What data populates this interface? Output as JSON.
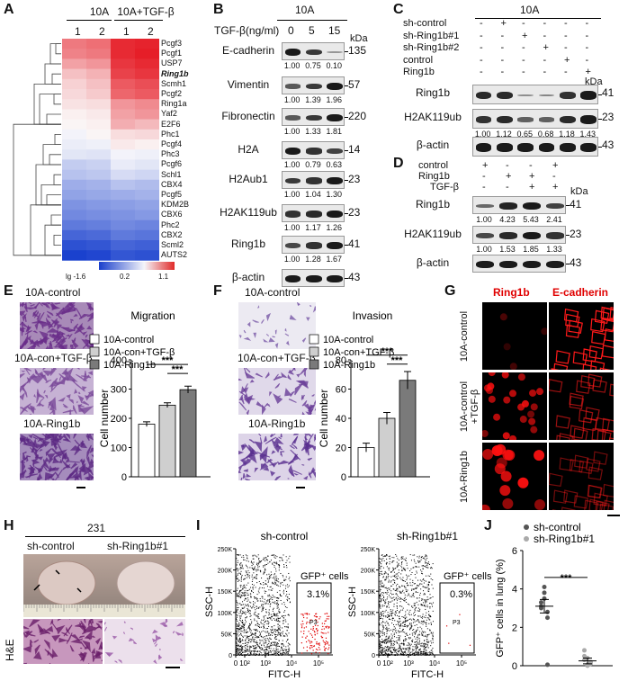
{
  "panel_labels": {
    "A": "A",
    "B": "B",
    "C": "C",
    "D": "D",
    "E": "E",
    "F": "F",
    "G": "G",
    "H": "H",
    "I": "I",
    "J": "J"
  },
  "panelA": {
    "group1": "10A",
    "group2": "10A+TGF-β",
    "col_labels": [
      "1",
      "2",
      "1",
      "2"
    ],
    "genes": [
      "Pcgf3",
      "Pcgf1",
      "USP7",
      "Ring1b",
      "Scmh1",
      "Pcgf2",
      "Ring1a",
      "Yaf2",
      "E2F6",
      "Phc1",
      "Pcgf4",
      "Phc3",
      "Pcgf6",
      "Schl1",
      "CBX4",
      "Pcgf5",
      "KDM2B",
      "CBX6",
      "Phc2",
      "CBX2",
      "Scml2",
      "AUTS2"
    ],
    "heat": [
      [
        0.72,
        0.76,
        1.05,
        1.08
      ],
      [
        0.68,
        0.72,
        1.05,
        1.1
      ],
      [
        0.55,
        0.6,
        1.0,
        1.05
      ],
      [
        0.42,
        0.48,
        0.95,
        1.0
      ],
      [
        0.35,
        0.42,
        0.85,
        0.9
      ],
      [
        0.32,
        0.38,
        0.8,
        0.85
      ],
      [
        0.28,
        0.3,
        0.6,
        0.65
      ],
      [
        0.22,
        0.25,
        0.55,
        0.6
      ],
      [
        0.2,
        0.22,
        0.5,
        0.45
      ],
      [
        0.18,
        0.2,
        0.3,
        0.32
      ],
      [
        0.12,
        0.15,
        0.25,
        0.22
      ],
      [
        0.05,
        0.02,
        0.18,
        0.15
      ],
      [
        -0.2,
        -0.15,
        0.1,
        0.05
      ],
      [
        -0.3,
        -0.25,
        -0.05,
        -0.1
      ],
      [
        -0.5,
        -0.45,
        -0.3,
        -0.35
      ],
      [
        -0.6,
        -0.55,
        -0.5,
        -0.45
      ],
      [
        -0.75,
        -0.7,
        -0.65,
        -0.6
      ],
      [
        -0.85,
        -0.8,
        -0.75,
        -0.7
      ],
      [
        -1.0,
        -0.95,
        -0.85,
        -0.9
      ],
      [
        -1.2,
        -1.15,
        -1.0,
        -1.05
      ],
      [
        -1.4,
        -1.35,
        -1.2,
        -1.25
      ],
      [
        -1.55,
        -1.5,
        -1.35,
        -1.4
      ]
    ],
    "scale_labels": [
      "lg -1.6",
      "0.2",
      "1.1"
    ]
  },
  "panelB": {
    "title": "10A",
    "treatment_label": "TGF-β(ng/ml)",
    "doses": [
      "0",
      "5",
      "15"
    ],
    "unit": "kDa",
    "rows": [
      {
        "name": "E-cadherin",
        "kda": "135",
        "quant": [
          "1.00",
          "0.75",
          "0.10"
        ],
        "int": [
          1,
          0.8,
          0.2
        ]
      },
      {
        "name": "Vimentin",
        "kda": "57",
        "quant": [
          "1.00",
          "1.39",
          "1.96"
        ],
        "int": [
          0.6,
          0.8,
          1
        ]
      },
      {
        "name": "Fibronectin",
        "kda": "220",
        "quant": [
          "1.00",
          "1.33",
          "1.81"
        ],
        "int": [
          0.6,
          0.8,
          1
        ]
      },
      {
        "name": "H2A",
        "kda": "14",
        "quant": [
          "1.00",
          "0.79",
          "0.63"
        ],
        "int": [
          1,
          0.85,
          0.75
        ]
      },
      {
        "name": "H2Aub1",
        "kda": "23",
        "quant": [
          "1.00",
          "1.04",
          "1.30"
        ],
        "int": [
          0.8,
          0.85,
          1
        ]
      },
      {
        "name": "H2AK119ub",
        "kda": "23",
        "quant": [
          "1.00",
          "1.17",
          "1.26"
        ],
        "int": [
          0.85,
          0.9,
          1
        ]
      },
      {
        "name": "Ring1b",
        "kda": "41",
        "quant": [
          "1.00",
          "1.28",
          "1.67"
        ],
        "int": [
          0.7,
          0.85,
          1
        ]
      },
      {
        "name": "β-actin",
        "kda": "43",
        "quant": [],
        "int": [
          1,
          1,
          1
        ]
      }
    ]
  },
  "panelC": {
    "title": "10A",
    "unit": "kDa",
    "conditions": [
      {
        "name": "sh-control",
        "signs": [
          "-",
          "+",
          "-",
          "-",
          "-",
          "-"
        ]
      },
      {
        "name": "sh-Ring1b#1",
        "signs": [
          "-",
          "-",
          "+",
          "-",
          "-",
          "-"
        ]
      },
      {
        "name": "sh-Ring1b#2",
        "signs": [
          "-",
          "-",
          "-",
          "+",
          "-",
          "-"
        ]
      },
      {
        "name": "control",
        "signs": [
          "-",
          "-",
          "-",
          "-",
          "+",
          "-"
        ]
      },
      {
        "name": "Ring1b",
        "signs": [
          "-",
          "-",
          "-",
          "-",
          "-",
          "+"
        ]
      }
    ],
    "rows": [
      {
        "name": "Ring1b",
        "kda": "41",
        "quant": [],
        "int": [
          0.9,
          0.9,
          0.25,
          0.3,
          0.85,
          1
        ]
      },
      {
        "name": "H2AK119ub",
        "kda": "23",
        "quant": [
          "1.00",
          "1.12",
          "0.65",
          "0.68",
          "1.18",
          "1.43"
        ],
        "int": [
          0.85,
          0.9,
          0.55,
          0.55,
          0.9,
          1
        ]
      },
      {
        "name": "β-actin",
        "kda": "43",
        "quant": [],
        "int": [
          1,
          1,
          1,
          1,
          1,
          1
        ]
      }
    ]
  },
  "panelD": {
    "unit": "kDa",
    "conditions": [
      {
        "name": "control",
        "signs": [
          "+",
          "-",
          "-",
          "+"
        ]
      },
      {
        "name": "Ring1b",
        "signs": [
          "-",
          "+",
          "+",
          "-"
        ]
      },
      {
        "name": "TGF-β",
        "signs": [
          "-",
          "-",
          "+",
          "+"
        ]
      }
    ],
    "rows": [
      {
        "name": "Ring1b",
        "kda": "41",
        "quant": [
          "1.00",
          "4.23",
          "5.43",
          "2.41"
        ],
        "int": [
          0.5,
          0.95,
          1,
          0.75
        ]
      },
      {
        "name": "H2AK119ub",
        "kda": "23",
        "quant": [
          "1.00",
          "1.53",
          "1.85",
          "1.33"
        ],
        "int": [
          0.7,
          0.9,
          1,
          0.85
        ]
      },
      {
        "name": "β-actin",
        "kda": "43",
        "quant": [],
        "int": [
          1,
          1,
          1,
          1
        ]
      }
    ]
  },
  "panelE": {
    "images": [
      "10A-control",
      "10A-con+TGF-β",
      "10A-Ring1b"
    ]
  },
  "panelF": {
    "images": [
      "10A-control",
      "10A-con+TGF-β",
      "10A-Ring1b"
    ]
  },
  "chart_data": [
    {
      "type": "bar",
      "title": "Migration",
      "categories": [
        "10A-control",
        "10A-con+TGF-β",
        "10A-Ring1b"
      ],
      "values": [
        180,
        245,
        298
      ],
      "errors": [
        8,
        8,
        12
      ],
      "ylabel": "Cell number",
      "ylim": [
        0,
        400
      ],
      "yticks": [
        "0",
        "100",
        "200",
        "300",
        "400"
      ],
      "colors": [
        "#ffffff",
        "#cfcfcf",
        "#7a7a7a"
      ],
      "significance": [
        "***",
        "***"
      ]
    },
    {
      "type": "bar",
      "title": "Invasion",
      "categories": [
        "10A-control",
        "10A-con+TGF-β",
        "10A-Ring1b"
      ],
      "values": [
        20,
        40,
        66
      ],
      "errors": [
        3,
        4,
        6
      ],
      "ylabel": "Cell number",
      "ylim": [
        0,
        80
      ],
      "yticks": [
        "0",
        "20",
        "40",
        "60",
        "80"
      ],
      "colors": [
        "#ffffff",
        "#cfcfcf",
        "#7a7a7a"
      ],
      "significance": [
        "***",
        "***"
      ]
    },
    {
      "type": "scatter",
      "ylabel": "GFP⁺ cells in lung (%)",
      "ylim": [
        0,
        6
      ],
      "yticks": [
        "0",
        "2",
        "4",
        "6"
      ],
      "significance": "***",
      "series": [
        {
          "name": "sh-control",
          "color": "#555555",
          "values": [
            3.1,
            3.5,
            2.8,
            3.3,
            4.1,
            2.5,
            3.0,
            3.8,
            0.05
          ],
          "mean": 3.1,
          "sem": 0.35
        },
        {
          "name": "sh-Ring1b#1",
          "color": "#aaaaaa",
          "values": [
            0.3,
            0.05,
            0.1,
            0.5,
            0.0,
            0.2,
            0.8,
            0.4
          ],
          "mean": 0.25,
          "sem": 0.15
        }
      ]
    }
  ],
  "panelG": {
    "col_labels": [
      "Ring1b",
      "E-cadherin"
    ],
    "row_labels": [
      "10A-control",
      "10A-control +TGF-β",
      "10A-Ring1b"
    ]
  },
  "panelH": {
    "title": "231",
    "labels": [
      "sh-control",
      "sh-Ring1b#1"
    ],
    "stain": "H&E"
  },
  "panelI": {
    "plots": [
      {
        "title": "sh-control",
        "gate_label": "GFP⁺ cells",
        "percent": "3.1%",
        "gate": "P3"
      },
      {
        "title": "sh-Ring1b#1",
        "gate_label": "GFP⁺ cells",
        "percent": "0.3%",
        "gate": "P3"
      }
    ],
    "xlabel": "FITC-H",
    "ylabel": "SSC-H",
    "xticks": [
      "0",
      "10²",
      "10³",
      "10⁴",
      "10⁵"
    ],
    "yticks": [
      "0",
      "50K",
      "100K",
      "150K",
      "200K",
      "250K"
    ]
  }
}
